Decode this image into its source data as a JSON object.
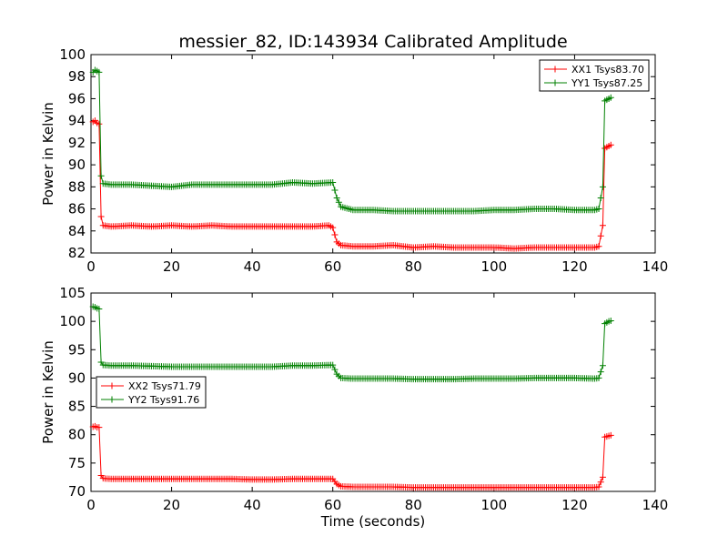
{
  "chart_data": {
    "title": "messier_82, ID:143934 Calibrated Amplitude",
    "panels": [
      {
        "type": "line",
        "ylabel": "Power in Kelvin",
        "xlabel": "",
        "xlim": [
          0,
          140
        ],
        "ylim": [
          82,
          100
        ],
        "xticks": [
          0,
          20,
          40,
          60,
          80,
          100,
          120,
          140
        ],
        "yticks": [
          82,
          84,
          86,
          88,
          90,
          92,
          94,
          96,
          98,
          100
        ],
        "legend_position": "upper-right",
        "series": [
          {
            "name": "XX1 Tsys83.70",
            "color": "#ff0000",
            "marker": "+",
            "points": [
              [
                0.5,
                93.9
              ],
              [
                1,
                94.0
              ],
              [
                1.5,
                93.8
              ],
              [
                2,
                93.7
              ],
              [
                2.5,
                85.3
              ],
              [
                3,
                84.5
              ],
              [
                5,
                84.4
              ],
              [
                10,
                84.5
              ],
              [
                15,
                84.4
              ],
              [
                20,
                84.5
              ],
              [
                25,
                84.4
              ],
              [
                30,
                84.5
              ],
              [
                35,
                84.4
              ],
              [
                40,
                84.4
              ],
              [
                45,
                84.4
              ],
              [
                50,
                84.4
              ],
              [
                55,
                84.4
              ],
              [
                59,
                84.5
              ],
              [
                60,
                84.3
              ],
              [
                61,
                83.0
              ],
              [
                62,
                82.7
              ],
              [
                65,
                82.6
              ],
              [
                70,
                82.6
              ],
              [
                75,
                82.7
              ],
              [
                80,
                82.5
              ],
              [
                85,
                82.6
              ],
              [
                90,
                82.5
              ],
              [
                95,
                82.5
              ],
              [
                100,
                82.5
              ],
              [
                105,
                82.4
              ],
              [
                110,
                82.5
              ],
              [
                115,
                82.5
              ],
              [
                120,
                82.5
              ],
              [
                125,
                82.5
              ],
              [
                126,
                82.6
              ],
              [
                127,
                84.5
              ],
              [
                127.5,
                91.5
              ],
              [
                128.5,
                91.7
              ],
              [
                129,
                91.8
              ]
            ]
          },
          {
            "name": "YY1 Tsys87.25",
            "color": "#008000",
            "marker": "+",
            "points": [
              [
                0.5,
                98.4
              ],
              [
                1,
                98.6
              ],
              [
                1.5,
                98.5
              ],
              [
                2,
                98.4
              ],
              [
                2.5,
                89.0
              ],
              [
                3,
                88.3
              ],
              [
                5,
                88.2
              ],
              [
                10,
                88.2
              ],
              [
                15,
                88.1
              ],
              [
                20,
                88.0
              ],
              [
                25,
                88.2
              ],
              [
                30,
                88.2
              ],
              [
                35,
                88.2
              ],
              [
                40,
                88.2
              ],
              [
                45,
                88.2
              ],
              [
                50,
                88.4
              ],
              [
                55,
                88.3
              ],
              [
                60,
                88.4
              ],
              [
                61,
                87.0
              ],
              [
                62,
                86.2
              ],
              [
                65,
                85.9
              ],
              [
                70,
                85.9
              ],
              [
                75,
                85.8
              ],
              [
                80,
                85.8
              ],
              [
                85,
                85.8
              ],
              [
                90,
                85.8
              ],
              [
                95,
                85.8
              ],
              [
                100,
                85.9
              ],
              [
                105,
                85.9
              ],
              [
                110,
                86.0
              ],
              [
                115,
                86.0
              ],
              [
                120,
                85.9
              ],
              [
                125,
                85.9
              ],
              [
                126,
                86.0
              ],
              [
                127,
                88.0
              ],
              [
                127.5,
                95.8
              ],
              [
                128.5,
                96.0
              ],
              [
                129,
                96.1
              ]
            ]
          }
        ]
      },
      {
        "type": "line",
        "ylabel": "Power in Kelvin",
        "xlabel": "Time (seconds)",
        "xlim": [
          0,
          140
        ],
        "ylim": [
          70,
          105
        ],
        "xticks": [
          0,
          20,
          40,
          60,
          80,
          100,
          120,
          140
        ],
        "yticks": [
          70,
          75,
          80,
          85,
          90,
          95,
          100,
          105
        ],
        "legend_position": "center-left",
        "series": [
          {
            "name": "XX2 Tsys71.79",
            "color": "#ff0000",
            "marker": "+",
            "points": [
              [
                0.5,
                81.4
              ],
              [
                1,
                81.5
              ],
              [
                1.5,
                81.3
              ],
              [
                2,
                81.3
              ],
              [
                2.5,
                72.8
              ],
              [
                3,
                72.3
              ],
              [
                5,
                72.2
              ],
              [
                10,
                72.2
              ],
              [
                15,
                72.2
              ],
              [
                20,
                72.2
              ],
              [
                25,
                72.2
              ],
              [
                30,
                72.2
              ],
              [
                35,
                72.2
              ],
              [
                40,
                72.1
              ],
              [
                45,
                72.1
              ],
              [
                50,
                72.2
              ],
              [
                55,
                72.2
              ],
              [
                60,
                72.2
              ],
              [
                61,
                71.3
              ],
              [
                62,
                70.9
              ],
              [
                65,
                70.8
              ],
              [
                70,
                70.8
              ],
              [
                75,
                70.8
              ],
              [
                80,
                70.7
              ],
              [
                85,
                70.7
              ],
              [
                90,
                70.7
              ],
              [
                95,
                70.7
              ],
              [
                100,
                70.7
              ],
              [
                105,
                70.7
              ],
              [
                110,
                70.7
              ],
              [
                115,
                70.7
              ],
              [
                120,
                70.7
              ],
              [
                125,
                70.7
              ],
              [
                126,
                70.8
              ],
              [
                127,
                72.5
              ],
              [
                127.5,
                79.6
              ],
              [
                128.5,
                79.8
              ],
              [
                129,
                79.9
              ]
            ]
          },
          {
            "name": "YY2 Tsys91.76",
            "color": "#008000",
            "marker": "+",
            "points": [
              [
                0.5,
                102.6
              ],
              [
                1,
                102.5
              ],
              [
                1.5,
                102.3
              ],
              [
                2,
                102.2
              ],
              [
                2.5,
                92.8
              ],
              [
                3,
                92.3
              ],
              [
                5,
                92.2
              ],
              [
                10,
                92.2
              ],
              [
                15,
                92.1
              ],
              [
                20,
                92.0
              ],
              [
                25,
                92.0
              ],
              [
                30,
                92.0
              ],
              [
                35,
                92.0
              ],
              [
                40,
                92.0
              ],
              [
                45,
                92.0
              ],
              [
                50,
                92.2
              ],
              [
                55,
                92.2
              ],
              [
                60,
                92.3
              ],
              [
                61,
                90.7
              ],
              [
                62,
                90.0
              ],
              [
                65,
                89.9
              ],
              [
                70,
                89.9
              ],
              [
                75,
                89.9
              ],
              [
                80,
                89.8
              ],
              [
                85,
                89.8
              ],
              [
                90,
                89.8
              ],
              [
                95,
                89.9
              ],
              [
                100,
                89.9
              ],
              [
                105,
                89.9
              ],
              [
                110,
                90.0
              ],
              [
                115,
                90.0
              ],
              [
                120,
                90.0
              ],
              [
                125,
                89.9
              ],
              [
                126,
                90.0
              ],
              [
                127,
                92.2
              ],
              [
                127.5,
                99.6
              ],
              [
                128.5,
                100.0
              ],
              [
                129,
                100.1
              ]
            ]
          }
        ]
      }
    ]
  }
}
